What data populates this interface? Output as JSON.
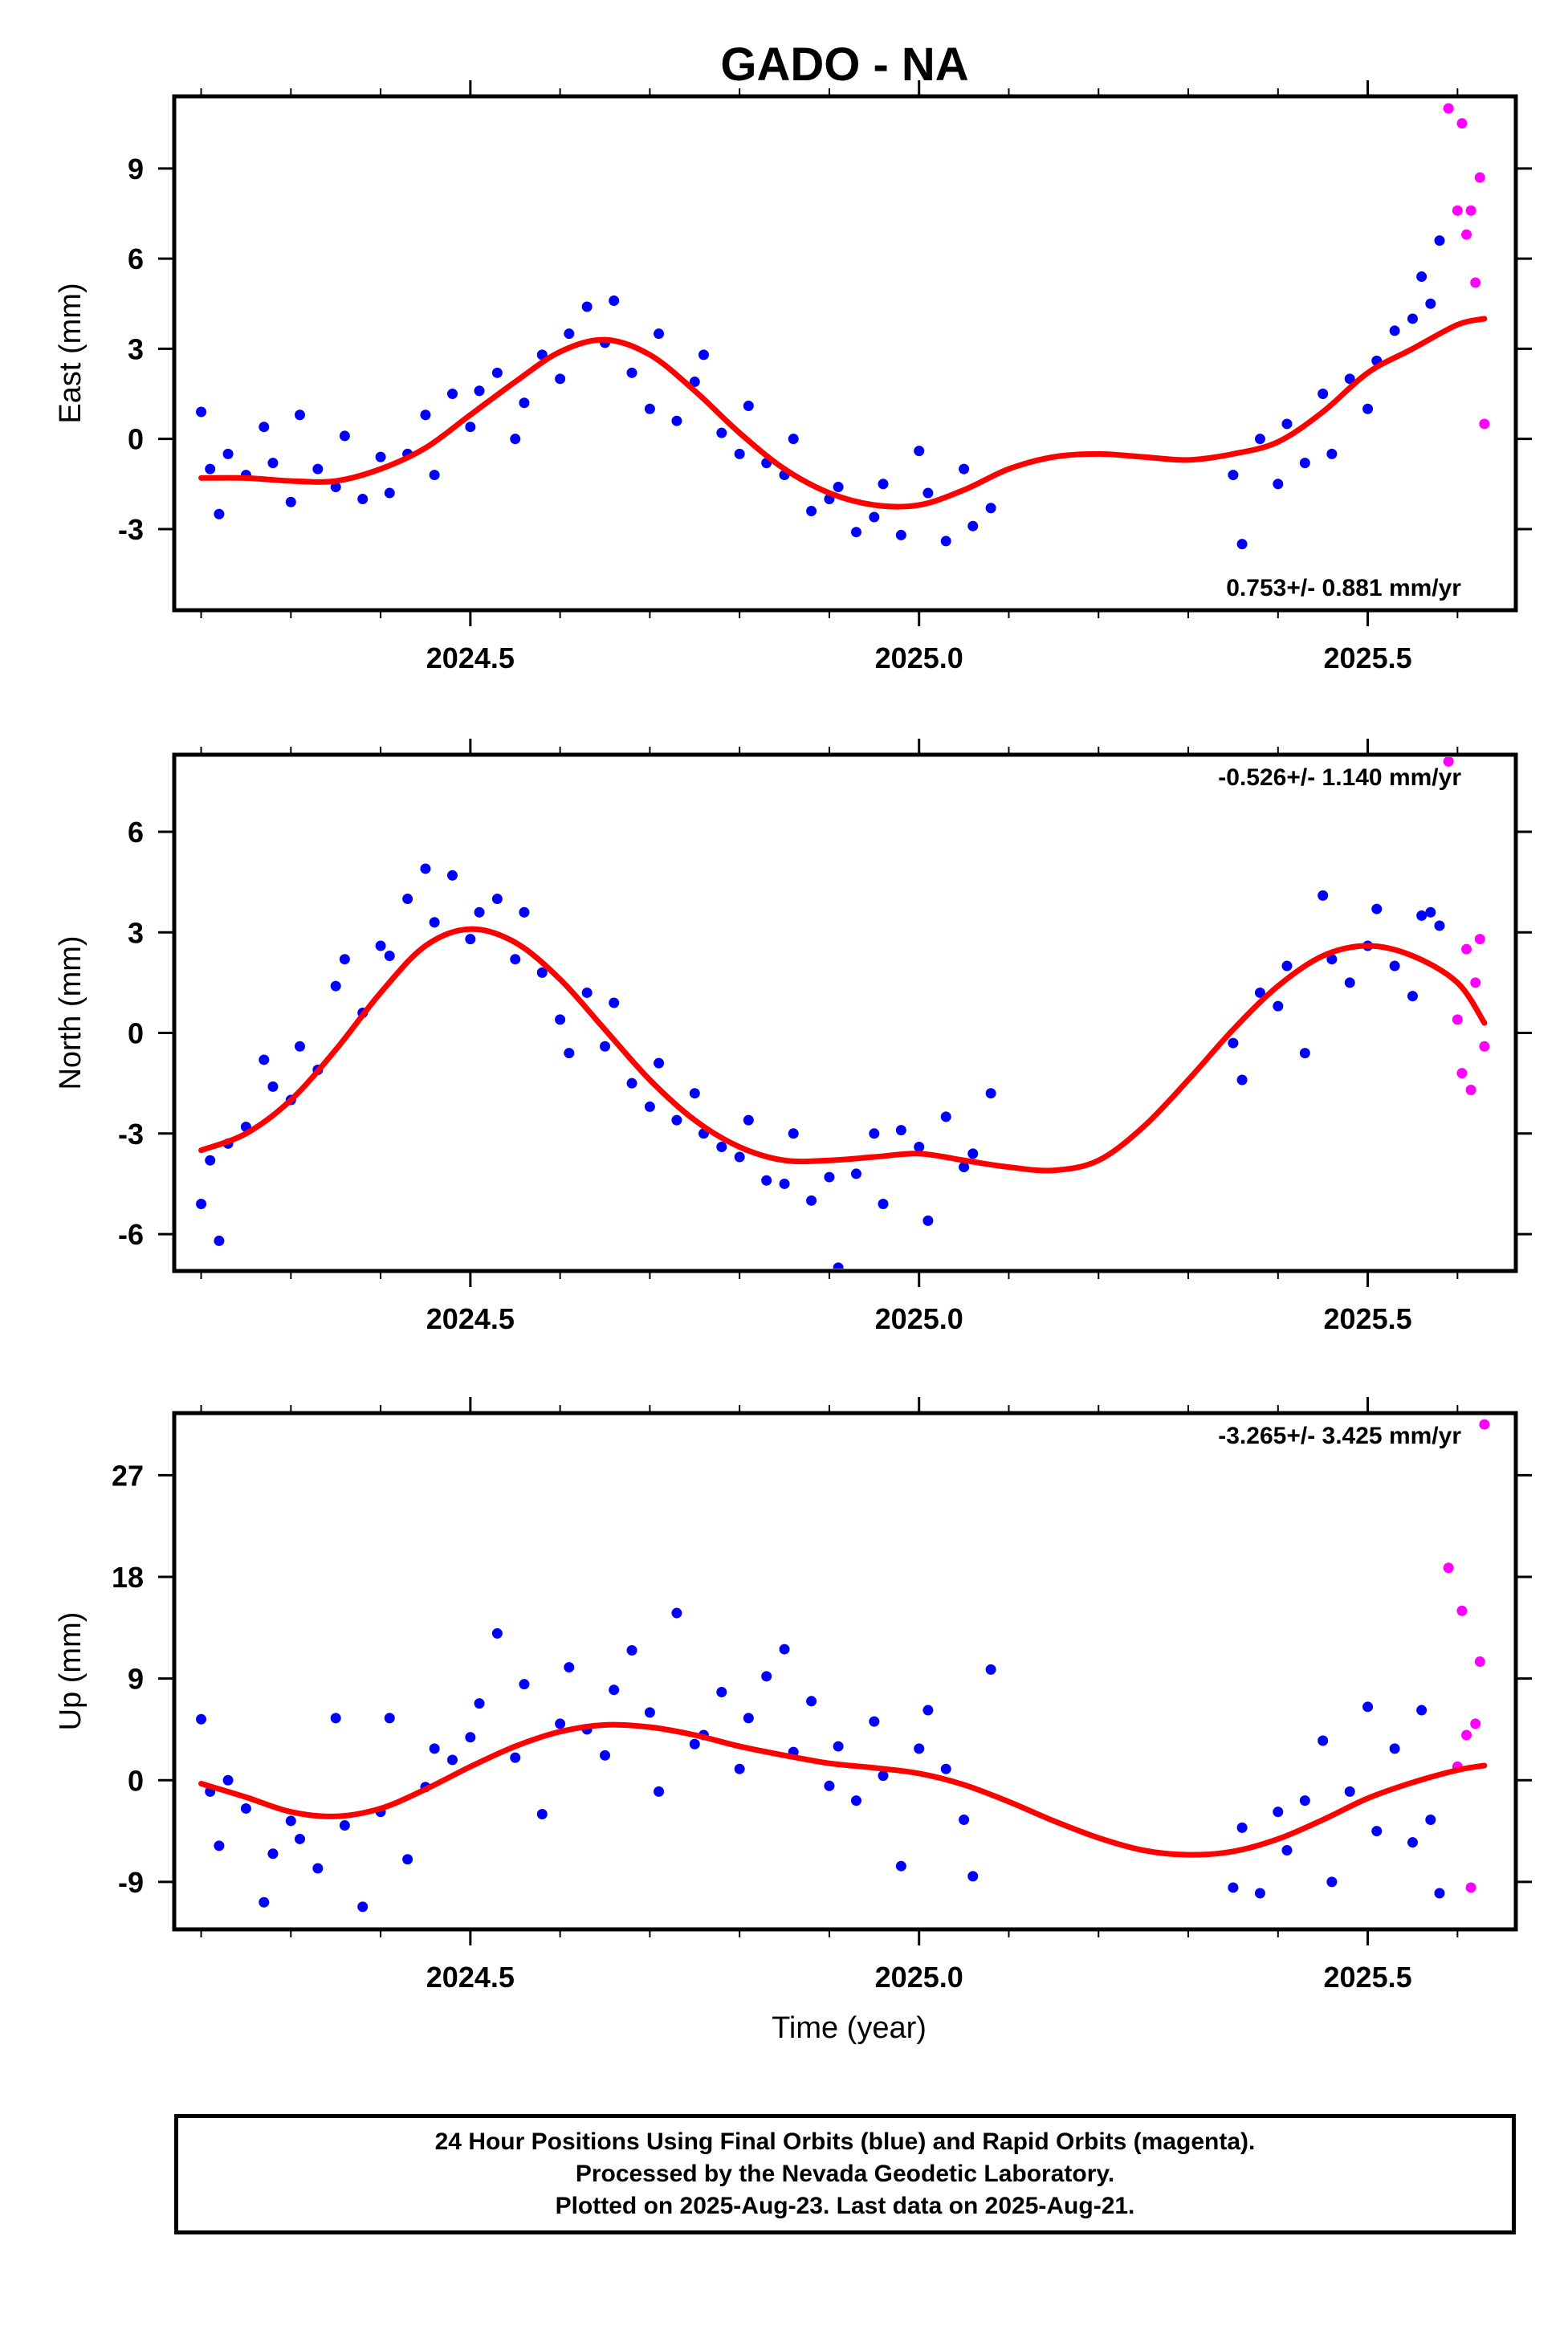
{
  "colors": {
    "final": "#0000ff",
    "rapid": "#ff00ff",
    "fit": "#ff0000",
    "frame": "#000000"
  },
  "footer": {
    "line1": "24 Hour Positions Using Final Orbits (blue) and Rapid Orbits (magenta).",
    "line2": "Processed by the Nevada Geodetic Laboratory.",
    "line3": "Plotted on 2025-Aug-23. Last data on 2025-Aug-21."
  },
  "chart_data": [
    {
      "type": "scatter",
      "title": "GADO - NA",
      "ylabel": "East (mm)",
      "xlabel": "",
      "xlim": [
        2024.17,
        2025.665
      ],
      "ylim": [
        -5.7,
        11.4
      ],
      "x_ticks": [
        "2024.5",
        "2025.0",
        "2025.5"
      ],
      "y_ticks": [
        "-3",
        "0",
        "3",
        "6",
        "9"
      ],
      "rate": "0.753+/- 0.881 mm/yr",
      "rate_position": "bottom-right",
      "fit": {
        "x": [
          2024.2,
          2024.25,
          2024.3,
          2024.35,
          2024.4,
          2024.45,
          2024.5,
          2024.55,
          2024.6,
          2024.65,
          2024.7,
          2024.75,
          2024.8,
          2024.85,
          2024.9,
          2024.95,
          2025.0,
          2025.05,
          2025.1,
          2025.15,
          2025.2,
          2025.25,
          2025.3,
          2025.35,
          2025.4,
          2025.45,
          2025.5,
          2025.55,
          2025.6,
          2025.63
        ],
        "y": [
          -1.3,
          -1.3,
          -1.4,
          -1.4,
          -1.0,
          -0.3,
          0.8,
          1.9,
          2.9,
          3.3,
          2.8,
          1.6,
          0.2,
          -1.0,
          -1.8,
          -2.2,
          -2.2,
          -1.7,
          -1.0,
          -0.6,
          -0.5,
          -0.6,
          -0.7,
          -0.5,
          -0.1,
          0.9,
          2.2,
          3.0,
          3.8,
          4.0
        ]
      },
      "series": [
        {
          "name": "final",
          "x": [
            2024.2,
            2024.21,
            2024.22,
            2024.23,
            2024.25,
            2024.27,
            2024.28,
            2024.3,
            2024.31,
            2024.33,
            2024.35,
            2024.36,
            2024.38,
            2024.4,
            2024.41,
            2024.43,
            2024.45,
            2024.46,
            2024.48,
            2024.5,
            2024.51,
            2024.53,
            2024.55,
            2024.56,
            2024.58,
            2024.6,
            2024.61,
            2024.63,
            2024.65,
            2024.66,
            2024.68,
            2024.7,
            2024.71,
            2024.73,
            2024.75,
            2024.76,
            2024.78,
            2024.8,
            2024.81,
            2024.83,
            2024.85,
            2024.86,
            2024.88,
            2024.9,
            2024.91,
            2024.93,
            2024.95,
            2024.96,
            2024.98,
            2025.0,
            2025.01,
            2025.03,
            2025.05,
            2025.06,
            2025.08,
            2025.35,
            2025.36,
            2025.38,
            2025.4,
            2025.41,
            2025.43,
            2025.45,
            2025.46,
            2025.48,
            2025.5,
            2025.51,
            2025.53,
            2025.55,
            2025.56,
            2025.57,
            2025.58
          ],
          "y": [
            0.9,
            -1.0,
            -2.5,
            -0.5,
            -1.2,
            0.4,
            -0.8,
            -2.1,
            0.8,
            -1.0,
            -1.6,
            0.1,
            -2.0,
            -0.6,
            -1.8,
            -0.5,
            0.8,
            -1.2,
            1.5,
            0.4,
            1.6,
            2.2,
            0.0,
            1.2,
            2.8,
            2.0,
            3.5,
            4.4,
            3.2,
            4.6,
            2.2,
            1.0,
            3.5,
            0.6,
            1.9,
            2.8,
            0.2,
            -0.5,
            1.1,
            -0.8,
            -1.2,
            0.0,
            -2.4,
            -2.0,
            -1.6,
            -3.1,
            -2.6,
            -1.5,
            -3.2,
            -0.4,
            -1.8,
            -3.4,
            -1.0,
            -2.9,
            -2.3,
            -1.2,
            -3.5,
            0.0,
            -1.5,
            0.5,
            -0.8,
            1.5,
            -0.5,
            2.0,
            1.0,
            2.6,
            3.6,
            4.0,
            5.4,
            4.5,
            6.6
          ]
        },
        {
          "name": "rapid",
          "x": [
            2025.59,
            2025.6,
            2025.605,
            2025.61,
            2025.615,
            2025.62,
            2025.625,
            2025.63
          ],
          "y": [
            11.0,
            7.6,
            10.5,
            6.8,
            7.6,
            5.2,
            8.7,
            0.5
          ]
        }
      ]
    },
    {
      "type": "scatter",
      "ylabel": "North (mm)",
      "xlabel": "",
      "xlim": [
        2024.17,
        2025.665
      ],
      "ylim": [
        -7.1,
        8.3
      ],
      "x_ticks": [
        "2024.5",
        "2025.0",
        "2025.5"
      ],
      "y_ticks": [
        "-6",
        "-3",
        "0",
        "3",
        "6"
      ],
      "rate": "-0.526+/- 1.140 mm/yr",
      "rate_position": "top-right",
      "fit": {
        "x": [
          2024.2,
          2024.25,
          2024.3,
          2024.35,
          2024.4,
          2024.45,
          2024.5,
          2024.55,
          2024.6,
          2024.65,
          2024.7,
          2024.75,
          2024.8,
          2024.85,
          2024.9,
          2024.95,
          2025.0,
          2025.05,
          2025.1,
          2025.15,
          2025.2,
          2025.25,
          2025.3,
          2025.35,
          2025.4,
          2025.45,
          2025.5,
          2025.55,
          2025.6,
          2025.63
        ],
        "y": [
          -3.5,
          -3.0,
          -2.0,
          -0.5,
          1.2,
          2.6,
          3.1,
          2.7,
          1.6,
          0.1,
          -1.4,
          -2.6,
          -3.4,
          -3.8,
          -3.8,
          -3.7,
          -3.6,
          -3.8,
          -4.0,
          -4.1,
          -3.8,
          -2.8,
          -1.4,
          0.1,
          1.4,
          2.3,
          2.6,
          2.3,
          1.5,
          0.3
        ]
      },
      "series": [
        {
          "name": "final",
          "x": [
            2024.2,
            2024.21,
            2024.22,
            2024.23,
            2024.25,
            2024.27,
            2024.28,
            2024.3,
            2024.31,
            2024.33,
            2024.35,
            2024.36,
            2024.38,
            2024.4,
            2024.41,
            2024.43,
            2024.45,
            2024.46,
            2024.48,
            2024.5,
            2024.51,
            2024.53,
            2024.55,
            2024.56,
            2024.58,
            2024.6,
            2024.61,
            2024.63,
            2024.65,
            2024.66,
            2024.68,
            2024.7,
            2024.71,
            2024.73,
            2024.75,
            2024.76,
            2024.78,
            2024.8,
            2024.81,
            2024.83,
            2024.85,
            2024.86,
            2024.88,
            2024.9,
            2024.91,
            2024.93,
            2024.95,
            2024.96,
            2024.98,
            2025.0,
            2025.01,
            2025.03,
            2025.05,
            2025.06,
            2025.08,
            2025.35,
            2025.36,
            2025.38,
            2025.4,
            2025.41,
            2025.43,
            2025.45,
            2025.46,
            2025.48,
            2025.5,
            2025.51,
            2025.53,
            2025.55,
            2025.56,
            2025.57,
            2025.58
          ],
          "y": [
            -5.1,
            -3.8,
            -6.2,
            -3.3,
            -2.8,
            -0.8,
            -1.6,
            -2.0,
            -0.4,
            -1.1,
            1.4,
            2.2,
            0.6,
            2.6,
            2.3,
            4.0,
            4.9,
            3.3,
            4.7,
            2.8,
            3.6,
            4.0,
            2.2,
            3.6,
            1.8,
            0.4,
            -0.6,
            1.2,
            -0.4,
            0.9,
            -1.5,
            -2.2,
            -0.9,
            -2.6,
            -1.8,
            -3.0,
            -3.4,
            -3.7,
            -2.6,
            -4.4,
            -4.5,
            -3.0,
            -5.0,
            -4.3,
            -7.0,
            -4.2,
            -3.0,
            -5.1,
            -2.9,
            -3.4,
            -5.6,
            -2.5,
            -4.0,
            -3.6,
            -1.8,
            -0.3,
            -1.4,
            1.2,
            0.8,
            2.0,
            -0.6,
            4.1,
            2.2,
            1.5,
            2.6,
            3.7,
            2.0,
            1.1,
            3.5,
            3.6,
            3.2
          ]
        },
        {
          "name": "rapid",
          "x": [
            2025.59,
            2025.6,
            2025.605,
            2025.61,
            2025.615,
            2025.62,
            2025.625,
            2025.63
          ],
          "y": [
            8.1,
            0.4,
            -1.2,
            2.5,
            -1.7,
            1.5,
            2.8,
            -0.4
          ]
        }
      ]
    },
    {
      "type": "scatter",
      "ylabel": "Up (mm)",
      "xlabel": "Time (year)",
      "xlim": [
        2024.17,
        2025.665
      ],
      "ylim": [
        -13.2,
        32.5
      ],
      "x_ticks": [
        "2024.5",
        "2025.0",
        "2025.5"
      ],
      "y_ticks": [
        "-9",
        "0",
        "9",
        "18",
        "27"
      ],
      "rate": "-3.265+/- 3.425 mm/yr",
      "rate_position": "top-right",
      "fit": {
        "x": [
          2024.2,
          2024.25,
          2024.3,
          2024.35,
          2024.4,
          2024.45,
          2024.5,
          2024.55,
          2024.6,
          2024.65,
          2024.7,
          2024.75,
          2024.8,
          2024.85,
          2024.9,
          2024.95,
          2025.0,
          2025.05,
          2025.1,
          2025.15,
          2025.2,
          2025.25,
          2025.3,
          2025.35,
          2025.4,
          2025.45,
          2025.5,
          2025.55,
          2025.6,
          2025.63
        ],
        "y": [
          -0.3,
          -1.5,
          -2.8,
          -3.2,
          -2.5,
          -0.8,
          1.2,
          3.0,
          4.3,
          4.9,
          4.7,
          4.0,
          3.0,
          2.2,
          1.5,
          1.1,
          0.6,
          -0.4,
          -1.9,
          -3.6,
          -5.1,
          -6.2,
          -6.6,
          -6.3,
          -5.2,
          -3.5,
          -1.6,
          -0.2,
          0.9,
          1.3
        ]
      },
      "series": [
        {
          "name": "final",
          "x": [
            2024.2,
            2024.21,
            2024.22,
            2024.23,
            2024.25,
            2024.27,
            2024.28,
            2024.3,
            2024.31,
            2024.33,
            2024.35,
            2024.36,
            2024.38,
            2024.4,
            2024.41,
            2024.43,
            2024.45,
            2024.46,
            2024.48,
            2024.5,
            2024.51,
            2024.53,
            2024.55,
            2024.56,
            2024.58,
            2024.6,
            2024.61,
            2024.63,
            2024.65,
            2024.66,
            2024.68,
            2024.7,
            2024.71,
            2024.73,
            2024.75,
            2024.76,
            2024.78,
            2024.8,
            2024.81,
            2024.83,
            2024.85,
            2024.86,
            2024.88,
            2024.9,
            2024.91,
            2024.93,
            2024.95,
            2024.96,
            2024.98,
            2025.0,
            2025.01,
            2025.03,
            2025.05,
            2025.06,
            2025.08,
            2025.35,
            2025.36,
            2025.38,
            2025.4,
            2025.41,
            2025.43,
            2025.45,
            2025.46,
            2025.48,
            2025.5,
            2025.51,
            2025.53,
            2025.55,
            2025.56,
            2025.57,
            2025.58
          ],
          "y": [
            5.4,
            -1.0,
            -5.8,
            0.0,
            -2.5,
            -10.8,
            -6.5,
            -3.6,
            -5.2,
            -7.8,
            5.5,
            -4.0,
            -11.2,
            -2.8,
            5.5,
            -7.0,
            -0.6,
            2.8,
            1.8,
            3.8,
            6.8,
            13.0,
            2.0,
            8.5,
            -3.0,
            5.0,
            10.0,
            4.5,
            2.2,
            8.0,
            11.5,
            6.0,
            -1.0,
            14.8,
            3.2,
            4.0,
            7.8,
            1.0,
            5.5,
            9.2,
            11.6,
            2.5,
            7.0,
            -0.5,
            3.0,
            -1.8,
            5.2,
            0.4,
            -7.6,
            2.8,
            6.2,
            1.0,
            -3.5,
            -8.5,
            9.8,
            -9.5,
            -4.2,
            -10.0,
            -2.8,
            -6.2,
            -1.8,
            3.5,
            -9.0,
            -1.0,
            6.5,
            -4.5,
            2.8,
            -5.5,
            6.2,
            -3.5,
            -10.0
          ]
        },
        {
          "name": "rapid",
          "x": [
            2025.59,
            2025.6,
            2025.605,
            2025.61,
            2025.615,
            2025.62,
            2025.625,
            2025.63
          ],
          "y": [
            18.8,
            1.2,
            15.0,
            4.0,
            -9.5,
            5.0,
            10.5,
            31.5
          ]
        }
      ]
    }
  ]
}
